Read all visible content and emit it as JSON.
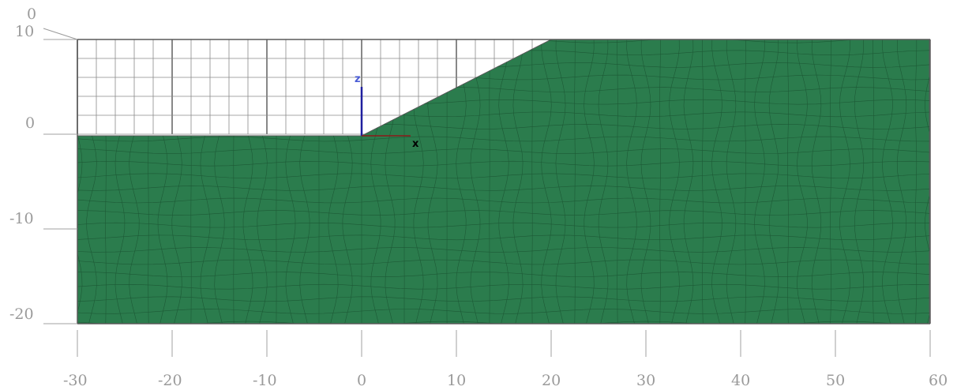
{
  "viewport": {
    "background": "#ffffff",
    "soil_color": "#2b7c4d",
    "mesh_line_color": "#1d5a36",
    "grid_line_color": "#7a7a7a",
    "frame_color": "#5a5a5a"
  },
  "axes": {
    "x_ticks": [
      "-30",
      "-20",
      "-10",
      "0",
      "10",
      "20",
      "30",
      "40",
      "50",
      "60"
    ],
    "y_ticks": [
      "10",
      "0",
      "-10",
      "-20"
    ],
    "corner_label": "0",
    "x_range": [
      -30,
      60
    ],
    "z_range": [
      -20,
      10
    ]
  },
  "triad": {
    "x_label": "x",
    "z_label": "z",
    "x_color": "#8b1a1a",
    "z_color": "#1f1f9e",
    "z_label_color": "#4a5cd6",
    "x_label_color": "#000000"
  },
  "model": {
    "slope_toe": [
      0,
      0
    ],
    "slope_crest": [
      20,
      10
    ],
    "bottom": -20
  }
}
